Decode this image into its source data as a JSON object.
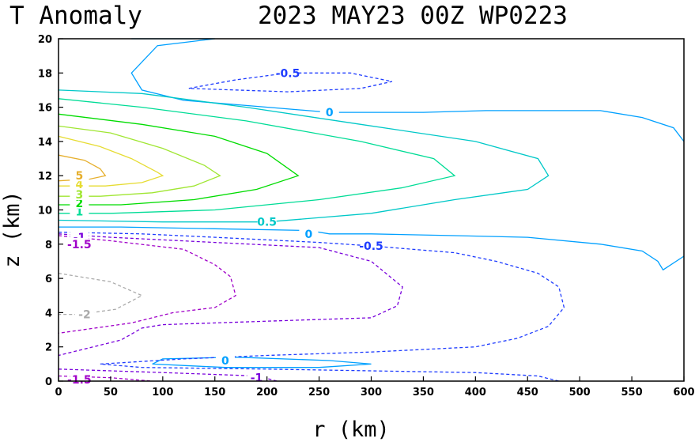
{
  "header": {
    "title_left": "T Anomaly",
    "title_right": "2023 MAY23 00Z  WP0223"
  },
  "chart_data": {
    "type": "contour",
    "xlabel": "r (km)",
    "ylabel": "z (km)",
    "xlim": [
      0,
      600
    ],
    "ylim": [
      0,
      20
    ],
    "x_ticks": [
      0,
      50,
      100,
      150,
      200,
      250,
      300,
      350,
      400,
      450,
      500,
      550,
      600
    ],
    "y_ticks": [
      0,
      2,
      4,
      6,
      8,
      10,
      12,
      14,
      16,
      18,
      20
    ],
    "grid": false,
    "colors": {
      "neg2": "#aaaaaa",
      "neg1_5": "#a000c8",
      "neg1": "#7800dc",
      "neg0_5": "#1e3cff",
      "zero": "#00a0ff",
      "pos0_5": "#00c8c8",
      "pos1": "#00dc96",
      "pos2": "#00dc00",
      "pos3": "#a0e632",
      "pos4": "#e6dc32",
      "pos5": "#e6af2d"
    },
    "contours": [
      {
        "level": "0",
        "color_key": "zero",
        "dashed": false,
        "label": "0",
        "points": [
          [
            70,
            20.0
          ],
          [
            115,
            20.0
          ],
          [
            150,
            20.0
          ],
          [
            95,
            19.6
          ],
          [
            70,
            18.0
          ],
          [
            80,
            17.0
          ],
          [
            120,
            16.4
          ],
          [
            180,
            16.1
          ],
          [
            260,
            15.7
          ],
          [
            350,
            15.7
          ],
          [
            410,
            15.8
          ],
          [
            460,
            15.8
          ],
          [
            520,
            15.8
          ],
          [
            560,
            15.4
          ],
          [
            590,
            14.8
          ],
          [
            600,
            14.0
          ]
        ],
        "label_at": [
          260,
          15.7
        ]
      },
      {
        "level": "0",
        "color_key": "zero",
        "dashed": false,
        "label": "0",
        "points": [
          [
            0,
            9.0
          ],
          [
            60,
            9.0
          ],
          [
            150,
            8.9
          ],
          [
            240,
            8.8
          ],
          [
            260,
            8.6
          ],
          [
            300,
            8.6
          ],
          [
            380,
            8.5
          ],
          [
            450,
            8.4
          ],
          [
            520,
            8.0
          ],
          [
            560,
            7.6
          ],
          [
            575,
            7.0
          ],
          [
            580,
            6.5
          ],
          [
            600,
            7.3
          ]
        ],
        "label_at": [
          240,
          8.6
        ]
      },
      {
        "level": "0",
        "color_key": "zero",
        "dashed": false,
        "label": "0",
        "points": [
          [
            90,
            1.0
          ],
          [
            100,
            1.3
          ],
          [
            170,
            1.4
          ],
          [
            260,
            1.2
          ],
          [
            300,
            1.0
          ],
          [
            250,
            0.8
          ],
          [
            160,
            0.8
          ],
          [
            90,
            1.0
          ]
        ],
        "label_at": [
          160,
          1.2
        ]
      },
      {
        "level": "-0.5",
        "color_key": "neg0_5",
        "dashed": true,
        "label": "-0.5",
        "points": [
          [
            125,
            17.1
          ],
          [
            170,
            17.6
          ],
          [
            220,
            18.0
          ],
          [
            280,
            18.0
          ],
          [
            320,
            17.5
          ],
          [
            290,
            17.1
          ],
          [
            220,
            16.9
          ],
          [
            125,
            17.1
          ]
        ],
        "label_at": [
          220,
          18.0
        ]
      },
      {
        "level": "-0.5",
        "color_key": "neg0_5",
        "dashed": true,
        "label": "-0.5",
        "points": [
          [
            0,
            8.7
          ],
          [
            80,
            8.6
          ],
          [
            150,
            8.4
          ],
          [
            250,
            8.1
          ],
          [
            300,
            7.9
          ],
          [
            380,
            7.5
          ],
          [
            420,
            7.0
          ],
          [
            460,
            6.3
          ],
          [
            480,
            5.5
          ],
          [
            485,
            4.3
          ],
          [
            470,
            3.2
          ],
          [
            440,
            2.5
          ],
          [
            400,
            2.0
          ],
          [
            300,
            1.7
          ],
          [
            200,
            1.5
          ],
          [
            120,
            1.3
          ],
          [
            40,
            1.0
          ],
          [
            80,
            0.8
          ],
          [
            200,
            0.7
          ],
          [
            300,
            0.6
          ],
          [
            400,
            0.5
          ],
          [
            460,
            0.3
          ],
          [
            480,
            0.0
          ]
        ],
        "label_at": [
          300,
          7.9
        ]
      },
      {
        "level": "-1",
        "color_key": "neg1",
        "dashed": true,
        "label": "-1",
        "points": [
          [
            0,
            8.6
          ],
          [
            50,
            8.4
          ],
          [
            150,
            8.1
          ],
          [
            250,
            7.8
          ],
          [
            300,
            7.0
          ],
          [
            330,
            5.5
          ],
          [
            325,
            4.4
          ],
          [
            300,
            3.7
          ],
          [
            200,
            3.5
          ],
          [
            100,
            3.3
          ],
          [
            80,
            3.1
          ],
          [
            60,
            2.4
          ],
          [
            0,
            1.5
          ]
        ],
        "label_at": [
          20,
          8.4
        ]
      },
      {
        "level": "-1.5",
        "color_key": "neg1_5",
        "dashed": true,
        "label": "-1.5",
        "points": [
          [
            0,
            8.5
          ],
          [
            50,
            8.2
          ],
          [
            120,
            7.7
          ],
          [
            150,
            6.8
          ],
          [
            165,
            6.1
          ],
          [
            170,
            5.0
          ],
          [
            150,
            4.3
          ],
          [
            110,
            4.0
          ],
          [
            70,
            3.4
          ],
          [
            0,
            2.8
          ]
        ],
        "label_at": [
          20,
          8.0
        ]
      },
      {
        "level": "-1",
        "color_key": "neg1",
        "dashed": true,
        "label": "-1",
        "points": [
          [
            0,
            0.7
          ],
          [
            100,
            0.5
          ],
          [
            190,
            0.3
          ],
          [
            210,
            0.0
          ]
        ],
        "label_at": [
          190,
          0.2
        ]
      },
      {
        "level": "-1.5",
        "color_key": "neg1_5",
        "dashed": true,
        "label": "-1.5",
        "points": [
          [
            0,
            0.3
          ],
          [
            50,
            0.2
          ],
          [
            90,
            0.0
          ]
        ],
        "label_at": [
          20,
          0.1
        ]
      },
      {
        "level": "-2",
        "color_key": "neg2",
        "dashed": true,
        "label": "-2",
        "points": [
          [
            0,
            6.3
          ],
          [
            50,
            5.8
          ],
          [
            80,
            5.0
          ],
          [
            55,
            4.2
          ],
          [
            20,
            3.9
          ],
          [
            0,
            3.9
          ]
        ],
        "label_at": [
          25,
          3.9
        ]
      },
      {
        "level": "0.5",
        "color_key": "pos0_5",
        "dashed": false,
        "label": "0.5",
        "points": [
          [
            0,
            17.0
          ],
          [
            80,
            16.8
          ],
          [
            180,
            16.0
          ],
          [
            290,
            15.0
          ],
          [
            400,
            14.0
          ],
          [
            460,
            13.0
          ],
          [
            470,
            12.0
          ],
          [
            450,
            11.2
          ],
          [
            380,
            10.6
          ],
          [
            300,
            9.8
          ],
          [
            200,
            9.3
          ],
          [
            100,
            9.3
          ],
          [
            0,
            9.4
          ]
        ],
        "label_at": [
          200,
          9.3
        ]
      },
      {
        "level": "1",
        "color_key": "pos1",
        "dashed": false,
        "label": "1",
        "points": [
          [
            0,
            16.5
          ],
          [
            80,
            16.0
          ],
          [
            180,
            15.2
          ],
          [
            290,
            14.0
          ],
          [
            360,
            13.0
          ],
          [
            380,
            12.0
          ],
          [
            330,
            11.3
          ],
          [
            250,
            10.6
          ],
          [
            150,
            10.0
          ],
          [
            50,
            9.8
          ],
          [
            0,
            9.8
          ]
        ],
        "label_at": [
          20,
          9.9
        ]
      },
      {
        "level": "2",
        "color_key": "pos2",
        "dashed": false,
        "label": "2",
        "points": [
          [
            0,
            15.6
          ],
          [
            80,
            15.0
          ],
          [
            150,
            14.3
          ],
          [
            200,
            13.3
          ],
          [
            230,
            12.0
          ],
          [
            190,
            11.2
          ],
          [
            130,
            10.6
          ],
          [
            60,
            10.3
          ],
          [
            0,
            10.3
          ]
        ],
        "label_at": [
          20,
          10.4
        ]
      },
      {
        "level": "3",
        "color_key": "pos3",
        "dashed": false,
        "label": "3",
        "points": [
          [
            0,
            14.9
          ],
          [
            50,
            14.5
          ],
          [
            100,
            13.6
          ],
          [
            140,
            12.6
          ],
          [
            155,
            12.0
          ],
          [
            130,
            11.4
          ],
          [
            90,
            11.0
          ],
          [
            40,
            10.8
          ],
          [
            0,
            10.8
          ]
        ],
        "label_at": [
          20,
          10.9
        ]
      },
      {
        "level": "4",
        "color_key": "pos4",
        "dashed": false,
        "label": "4",
        "points": [
          [
            0,
            14.3
          ],
          [
            40,
            13.7
          ],
          [
            70,
            13.0
          ],
          [
            95,
            12.2
          ],
          [
            100,
            12.0
          ],
          [
            80,
            11.6
          ],
          [
            45,
            11.4
          ],
          [
            0,
            11.4
          ]
        ],
        "label_at": [
          20,
          11.5
        ]
      },
      {
        "level": "5",
        "color_key": "pos5",
        "dashed": false,
        "label": "5",
        "points": [
          [
            0,
            13.2
          ],
          [
            25,
            12.9
          ],
          [
            40,
            12.4
          ],
          [
            45,
            12.0
          ],
          [
            30,
            11.8
          ],
          [
            0,
            11.7
          ]
        ],
        "label_at": [
          20,
          12.0
        ]
      }
    ]
  }
}
